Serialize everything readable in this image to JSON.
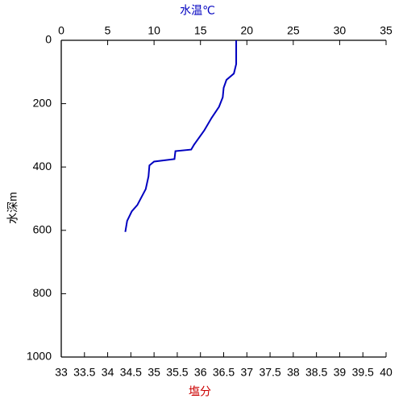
{
  "chart_data": {
    "type": "profile",
    "x_label": "水温℃",
    "x_label_color": "#0000c0",
    "x2_label": "塩分",
    "x2_label_color": "#cc0000",
    "y_label": "水深m",
    "xlim": [
      0,
      35
    ],
    "xticks": [
      0,
      5,
      10,
      15,
      20,
      25,
      30,
      35
    ],
    "x2lim": [
      33,
      40
    ],
    "x2ticks": [
      33,
      33.5,
      34,
      34.5,
      35,
      35.5,
      36,
      36.5,
      37,
      37.5,
      38,
      38.5,
      39,
      39.5,
      40
    ],
    "ylim": [
      0,
      1000
    ],
    "yticks": [
      0,
      200,
      400,
      600,
      800,
      1000
    ],
    "y_inverted": true,
    "series": [
      {
        "color": "#0000c0",
        "x": [
          18.85,
          18.85,
          18.6,
          17.8,
          17.5,
          17.4,
          17.0,
          16.2,
          15.4,
          14.3,
          14.0,
          12.3,
          12.2,
          10.0,
          9.5,
          9.4,
          9.1,
          8.2,
          7.6,
          7.1,
          6.9
        ],
        "y": [
          0,
          75,
          105,
          125,
          150,
          180,
          210,
          245,
          285,
          330,
          345,
          350,
          375,
          383,
          395,
          430,
          470,
          520,
          540,
          570,
          605
        ]
      }
    ]
  }
}
